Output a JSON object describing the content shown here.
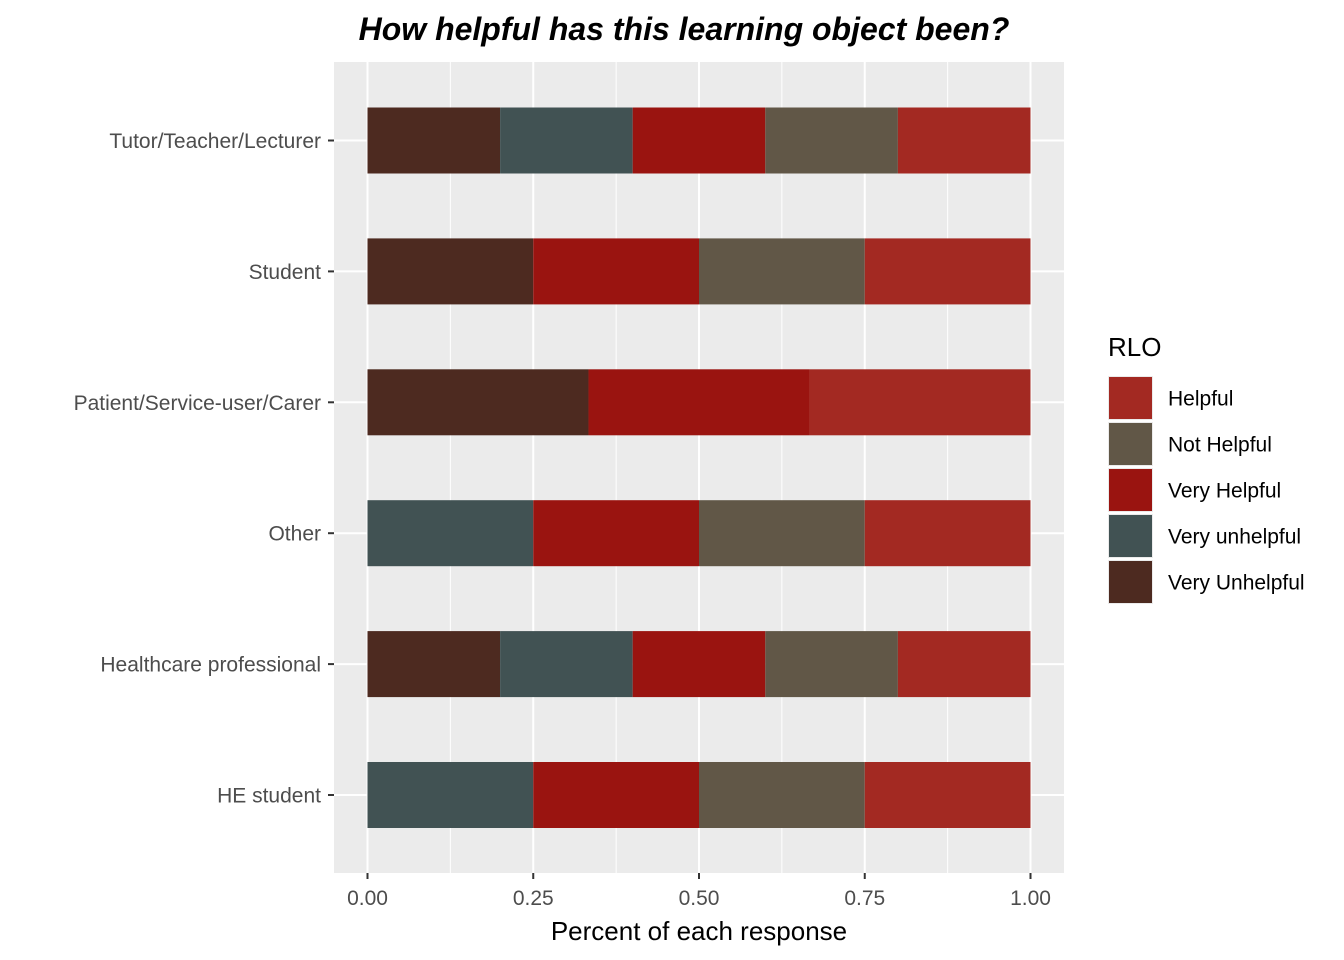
{
  "chart_data": {
    "type": "bar",
    "orientation": "horizontal",
    "stacked": true,
    "title": "How helpful has this learning object been?",
    "xlabel": "Percent of each response",
    "ylabel": "",
    "xlim": [
      0,
      1
    ],
    "x_ticks": [
      "0.00",
      "0.25",
      "0.50",
      "0.75",
      "1.00"
    ],
    "x_tick_values": [
      0,
      0.25,
      0.5,
      0.75,
      1.0
    ],
    "categories": [
      "Tutor/Teacher/Lecturer",
      "Student",
      "Patient/Service-user/Carer",
      "Other",
      "Healthcare professional",
      "HE student"
    ],
    "series": [
      {
        "name": "Very Unhelpful",
        "color": "#4d2a20",
        "values": [
          0.2,
          0.25,
          0.3333,
          0,
          0.2,
          0
        ]
      },
      {
        "name": "Very unhelpful",
        "color": "#415253",
        "values": [
          0.2,
          0,
          0,
          0.25,
          0.2,
          0.25
        ]
      },
      {
        "name": "Very Helpful",
        "color": "#9a1410",
        "values": [
          0.2,
          0.25,
          0.3333,
          0.25,
          0.2,
          0.25
        ]
      },
      {
        "name": "Not Helpful",
        "color": "#615747",
        "values": [
          0.2,
          0.25,
          0,
          0.25,
          0.2,
          0.25
        ]
      },
      {
        "name": "Helpful",
        "color": "#a32922",
        "values": [
          0.2,
          0.25,
          0.3334,
          0.25,
          0.2,
          0.25
        ]
      }
    ],
    "legend": {
      "title": "RLO",
      "position": "right",
      "items": [
        {
          "label": "Helpful",
          "color": "#a32922"
        },
        {
          "label": "Not Helpful",
          "color": "#615747"
        },
        {
          "label": "Very Helpful",
          "color": "#9a1410"
        },
        {
          "label": "Very unhelpful",
          "color": "#415253"
        },
        {
          "label": "Very Unhelpful",
          "color": "#4d2a20"
        }
      ]
    },
    "grid": true,
    "panel_background": "#ebebeb"
  }
}
